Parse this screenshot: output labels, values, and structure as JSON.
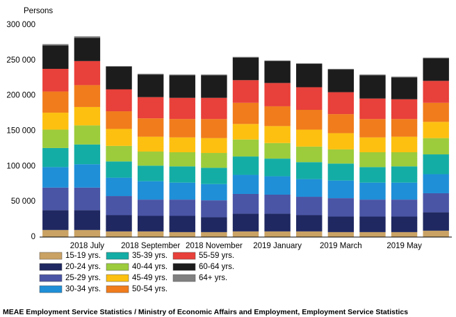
{
  "chart_data": {
    "type": "stacked-bar",
    "y_label": "Persons",
    "categories": [
      null,
      "2018 July",
      null,
      "2018 September",
      null,
      "2018 November",
      null,
      "2019 January",
      null,
      "2019 March",
      null,
      "2019 May",
      null
    ],
    "ylim": [
      0,
      300000
    ],
    "yticks": [
      {
        "value": 0,
        "label": "0"
      },
      {
        "value": 50000,
        "label": "50 000"
      },
      {
        "value": 100000,
        "label": "100 000"
      },
      {
        "value": 150000,
        "label": "150 000"
      },
      {
        "value": 200000,
        "label": "200 000"
      },
      {
        "value": 250000,
        "label": "250 000"
      },
      {
        "value": 300000,
        "label": "300 000"
      }
    ],
    "grid": false,
    "legend": "bottom",
    "series": [
      {
        "name": "15-19 yrs.",
        "color": "#c9a264",
        "values": [
          10000,
          10000,
          8000,
          8000,
          7000,
          7000,
          8000,
          8000,
          8000,
          7000,
          7000,
          7000,
          9000
        ]
      },
      {
        "name": "20-24 yrs.",
        "color": "#1f2860",
        "values": [
          28000,
          28000,
          23000,
          22000,
          23000,
          21000,
          25000,
          25000,
          23000,
          22000,
          22000,
          22000,
          26000
        ]
      },
      {
        "name": "25-29 yrs.",
        "color": "#4a55a5",
        "values": [
          32000,
          32000,
          27000,
          23000,
          23000,
          24000,
          28000,
          27000,
          26000,
          26000,
          24000,
          24000,
          27000
        ]
      },
      {
        "name": "30-34 yrs.",
        "color": "#1f8fd8",
        "values": [
          29000,
          33000,
          26000,
          26000,
          24000,
          23000,
          27000,
          26000,
          25000,
          25000,
          24000,
          24000,
          27000
        ]
      },
      {
        "name": "35-39 yrs.",
        "color": "#14ada5",
        "values": [
          27000,
          28000,
          23000,
          22000,
          23000,
          23000,
          26000,
          25000,
          24000,
          24000,
          22000,
          23000,
          28000
        ]
      },
      {
        "name": "40-44 yrs.",
        "color": "#9ccc3c",
        "values": [
          26000,
          27000,
          22000,
          20000,
          20000,
          21000,
          24000,
          22000,
          22000,
          20000,
          21000,
          20000,
          23000
        ]
      },
      {
        "name": "45-49 yrs.",
        "color": "#fdc010",
        "values": [
          24000,
          26000,
          24000,
          21000,
          21000,
          21000,
          22000,
          24000,
          24000,
          23000,
          21000,
          22000,
          23000
        ]
      },
      {
        "name": "50-54 yrs.",
        "color": "#f07c1c",
        "values": [
          30000,
          31000,
          25000,
          26000,
          26000,
          27000,
          30000,
          28000,
          28000,
          27000,
          26000,
          25000,
          27000
        ]
      },
      {
        "name": "55-59 yrs.",
        "color": "#e8403a",
        "values": [
          32000,
          34000,
          31000,
          30000,
          30000,
          30000,
          32000,
          33000,
          32000,
          31000,
          29000,
          28000,
          31000
        ]
      },
      {
        "name": "60-64 yrs.",
        "color": "#1c1c1c",
        "values": [
          33000,
          33000,
          32000,
          32000,
          32000,
          32000,
          32000,
          31000,
          33000,
          32000,
          33000,
          31000,
          32000
        ]
      },
      {
        "name": "64+ yrs.",
        "color": "#808080",
        "values": [
          2000,
          2000,
          1000,
          1000,
          1000,
          1000,
          1000,
          1000,
          1000,
          1000,
          1000,
          1000,
          1000
        ]
      }
    ],
    "source": "MEAE Employment Service Statistics / Ministry of Economic Affairs and Employment, Employment Service Statistics"
  }
}
